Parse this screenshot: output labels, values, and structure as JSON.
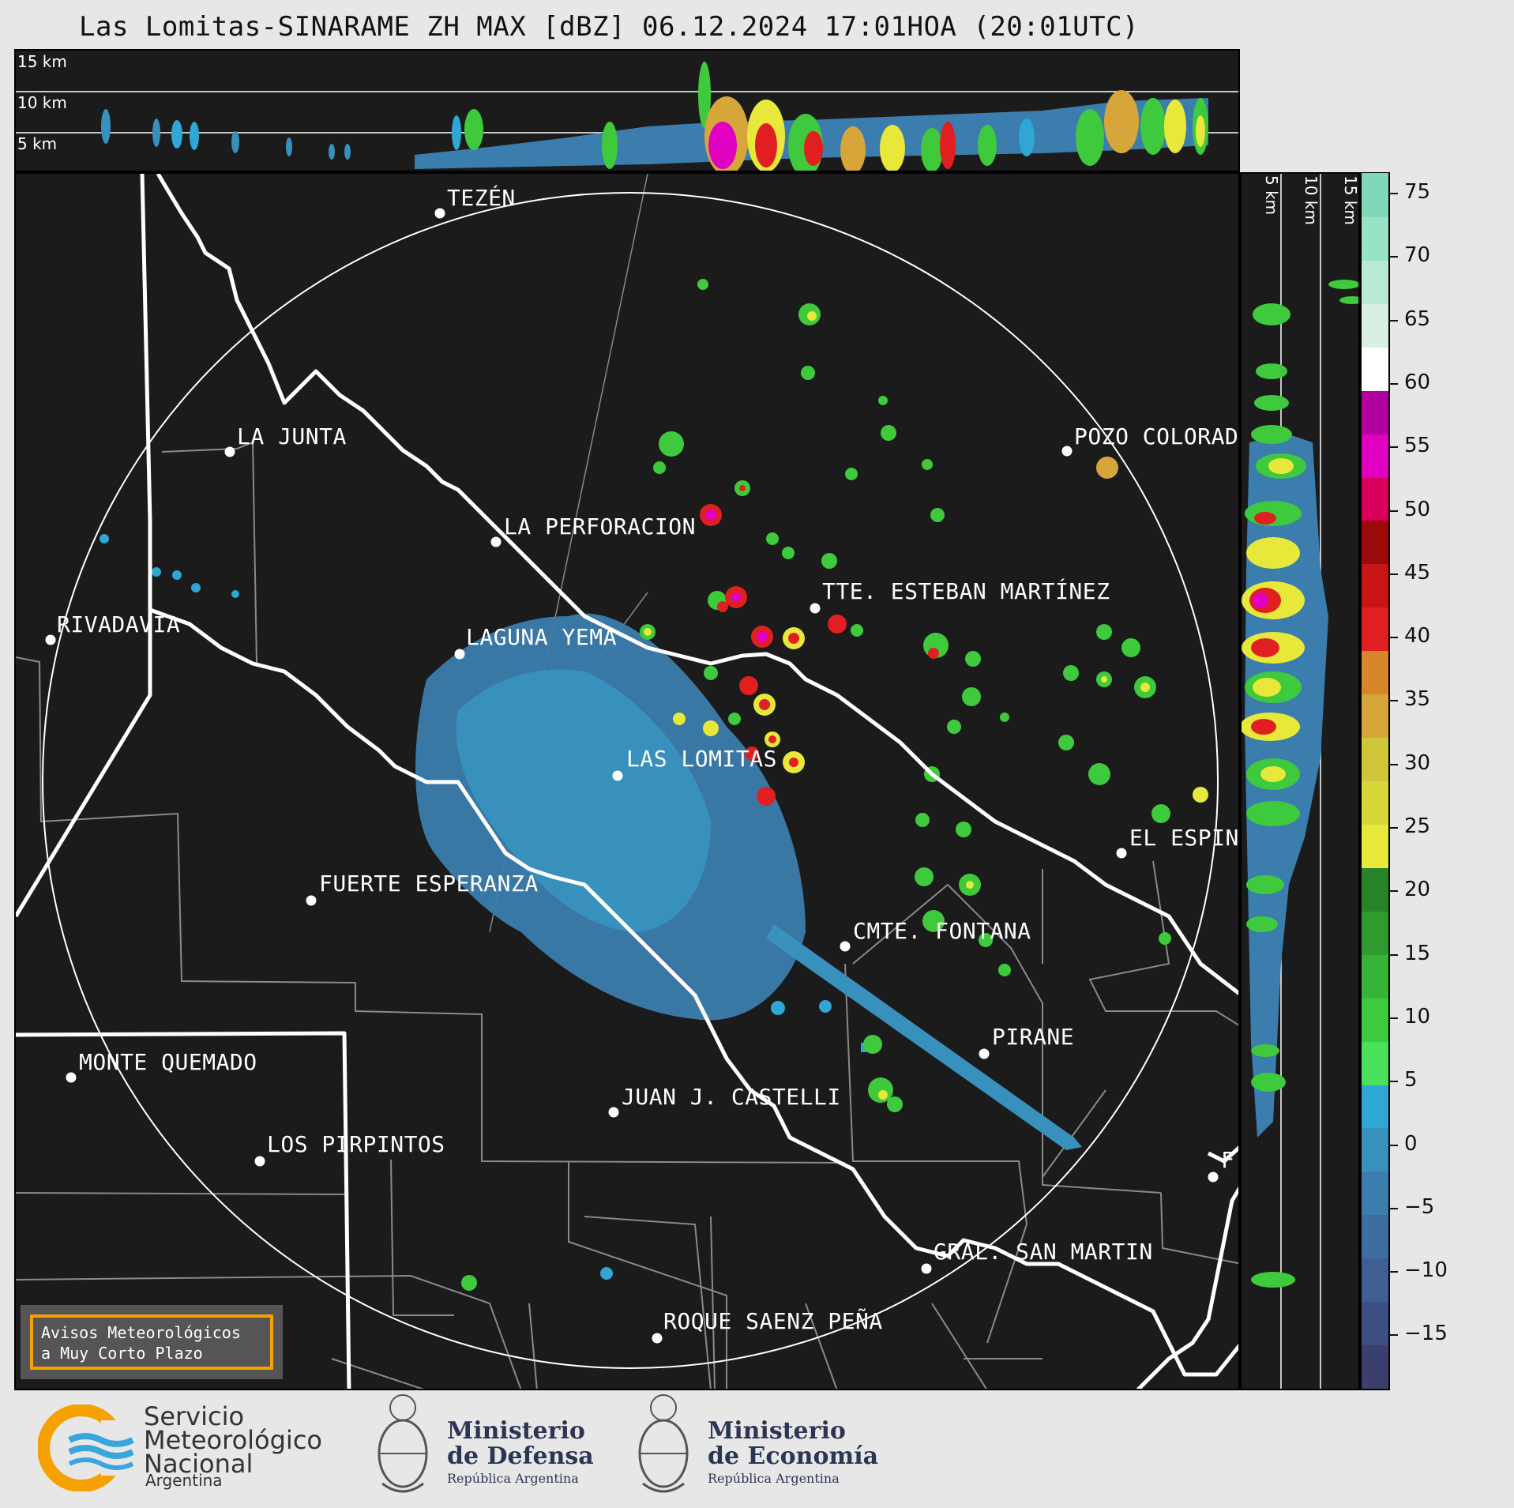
{
  "title": "Las Lomitas-SINARAME ZH MAX [dBZ] 06.12.2024 17:01HOA (20:01UTC)",
  "top_panel": {
    "km_labels": [
      "15 km",
      "10 km",
      "5 km"
    ]
  },
  "side_panel": {
    "km_labels": [
      "5 km",
      "10 km",
      "15 km"
    ]
  },
  "cities": [
    {
      "name": "TEZÉN"
    },
    {
      "name": "LA JUNTA"
    },
    {
      "name": "POZO COLORAD"
    },
    {
      "name": "LA PERFORACION"
    },
    {
      "name": "RIVADAVIA"
    },
    {
      "name": "TTE. ESTEBAN MARTÍNEZ"
    },
    {
      "name": "LAGUNA YEMA"
    },
    {
      "name": "LAS LOMITAS"
    },
    {
      "name": "EL ESPIN"
    },
    {
      "name": "FUERTE ESPERANZA"
    },
    {
      "name": "CMTE. FONTANA"
    },
    {
      "name": "PIRANE"
    },
    {
      "name": "MONTE QUEMADO"
    },
    {
      "name": "JUAN J. CASTELLI"
    },
    {
      "name": "LOS PIRPINTOS"
    },
    {
      "name": "GRAL. SAN MARTIN"
    },
    {
      "name": "ROQUE SAENZ PEÑA"
    },
    {
      "name": "F"
    }
  ],
  "colorbar": {
    "unit": "dBZ",
    "ticks": [
      "75",
      "70",
      "65",
      "60",
      "55",
      "50",
      "45",
      "40",
      "35",
      "30",
      "25",
      "20",
      "15",
      "10",
      "5",
      "0",
      "−5",
      "−10",
      "−15"
    ],
    "colors": [
      "#3a3f6e",
      "#3d4f82",
      "#3f5e92",
      "#3c6ea0",
      "#3b7dad",
      "#3890bd",
      "#2fa6d4",
      "#4be05a",
      "#3fc93c",
      "#36b237",
      "#2f9a2f",
      "#278228",
      "#e8e83a",
      "#d8d73a",
      "#cfc63a",
      "#d6a63a",
      "#d9862a",
      "#e02020",
      "#c81414",
      "#9a0a0a",
      "#d8005a",
      "#e000c0",
      "#b000a0",
      "#ffffff",
      "#d8f0e4",
      "#b8ead6",
      "#98e2c6",
      "#7fd9b8"
    ]
  },
  "avisos": {
    "line1": "Avisos Meteorológicos",
    "line2": "a Muy Corto Plazo"
  },
  "logos": {
    "smn": {
      "line1": "Servicio",
      "line2": "Meteorológico",
      "line3": "Nacional",
      "line4": "Argentina",
      "colors": {
        "orange": "#f5a100",
        "blue": "#3aa6dd"
      }
    },
    "defensa": {
      "line1": "Ministerio",
      "line2": "de Defensa",
      "line3": "República Argentina"
    },
    "economia": {
      "line1": "Ministerio",
      "line2": "de Economía",
      "line3": "República Argentina"
    }
  }
}
